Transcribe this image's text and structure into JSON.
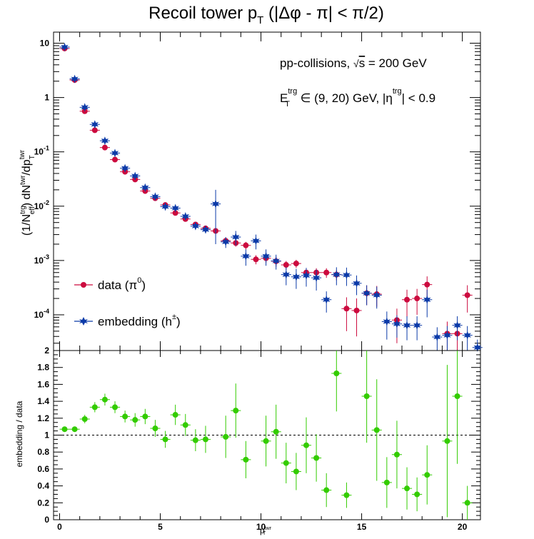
{
  "chart_data": [
    {
      "type": "scatter",
      "title_main": "Recoil tower p",
      "title_sub": "T",
      "title_tail": " (|Δφ - π| < π/2)",
      "annotation1": {
        "text": "pp-collisions, ",
        "sqrt": "s",
        "tail": " = 200 GeV"
      },
      "annotation2": {
        "base": "E",
        "sub": "T",
        "sup": "trg",
        "mid": " ∈ (9, 20) GeV, |η",
        "sup2": "trg",
        "tail": "| < 0.9"
      },
      "ylabel": {
        "a": "(1/N",
        "a_sup": "trg",
        "a_sub": "eff",
        "b": ") dN",
        "b_sup": "twr",
        "c": "/dp",
        "c_sub": "T",
        "c_sup": "twr"
      },
      "yscale": "log",
      "ylim": [
        2.2e-05,
        16
      ],
      "xlim": [
        -0.3,
        20.9
      ],
      "ytick_labels": [
        {
          "base": "10",
          "exp": "-4",
          "value": 0.0001
        },
        {
          "base": "10",
          "exp": "-3",
          "value": 0.001
        },
        {
          "base": "10",
          "exp": "-2",
          "value": 0.01
        },
        {
          "base": "10",
          "exp": "-1",
          "value": 0.1
        },
        {
          "base": "1",
          "exp": "",
          "value": 1
        },
        {
          "base": "10",
          "exp": "",
          "value": 10
        }
      ],
      "legend_position": "bottom-left",
      "series": [
        {
          "name": "data (π",
          "name_sup": "0",
          "name_tail": ")",
          "color": "#cc0a3e",
          "marker": "circle",
          "x": [
            0.25,
            0.75,
            1.25,
            1.75,
            2.25,
            2.75,
            3.25,
            3.75,
            4.25,
            4.75,
            5.25,
            5.75,
            6.25,
            6.75,
            7.25,
            7.75,
            8.25,
            8.75,
            9.25,
            9.75,
            10.25,
            10.75,
            11.25,
            11.75,
            12.25,
            12.75,
            13.25,
            13.75,
            14.25,
            14.75,
            15.25,
            15.75,
            16.25,
            16.75,
            17.25,
            17.75,
            18.25,
            18.75,
            19.25,
            19.75,
            20.25
          ],
          "y": [
            8.0,
            2.1,
            0.56,
            0.25,
            0.12,
            0.072,
            0.043,
            0.031,
            0.019,
            0.014,
            0.0105,
            0.0075,
            0.0058,
            0.0046,
            0.0039,
            0.0035,
            0.0023,
            0.0021,
            0.0019,
            0.00105,
            0.0011,
            0.00097,
            0.00083,
            0.00088,
            0.0006,
            0.0006,
            0.0006,
            0.00055,
            0.00013,
            0.00012,
            0.00025,
            0.00024,
            null,
            8e-05,
            0.00019,
            0.0002,
            0.00036,
            null,
            4.5e-05,
            4.5e-05,
            0.00023
          ],
          "err": [
            0.3,
            0.1,
            0.03,
            0.012,
            0.006,
            0.004,
            0.002,
            0.0015,
            0.001,
            0.0008,
            0.0006,
            0.0004,
            0.0004,
            0.0004,
            0.0004,
            0.0004,
            0.0003,
            0.0003,
            0.0003,
            0.0002,
            0.0002,
            0.0002,
            0.00015,
            0.00015,
            0.00012,
            0.00012,
            0.00012,
            0.00012,
            8e-05,
            8e-05,
            0.0001,
            0.0001,
            null,
            5e-05,
            0.0001,
            0.0001,
            0.00015,
            null,
            3e-05,
            3e-05,
            0.00012
          ]
        },
        {
          "name": "embedding (h",
          "name_sup": "±",
          "name_tail": ")",
          "color": "#0b3aa8",
          "marker": "star",
          "x": [
            0.25,
            0.75,
            1.25,
            1.75,
            2.25,
            2.75,
            3.25,
            3.75,
            4.25,
            4.75,
            5.25,
            5.75,
            6.25,
            6.75,
            7.25,
            7.75,
            8.25,
            8.75,
            9.25,
            9.75,
            10.25,
            10.75,
            11.25,
            11.75,
            12.25,
            12.75,
            13.25,
            13.75,
            14.25,
            14.75,
            15.25,
            15.75,
            16.25,
            16.75,
            17.25,
            17.75,
            18.25,
            18.75,
            19.25,
            19.75,
            20.25,
            20.75
          ],
          "y": [
            8.5,
            2.2,
            0.66,
            0.32,
            0.16,
            0.095,
            0.05,
            0.036,
            0.022,
            0.015,
            0.0098,
            0.0092,
            0.0065,
            0.0043,
            0.0037,
            0.011,
            0.0022,
            0.0027,
            0.0012,
            0.0023,
            0.0012,
            0.00098,
            0.00055,
            0.0005,
            0.00053,
            0.00048,
            0.00019,
            0.00055,
            0.00054,
            0.00038,
            0.00025,
            0.00023,
            7.5e-05,
            6.8e-05,
            6.4e-05,
            6.4e-05,
            0.00019,
            3.9e-05,
            4.2e-05,
            6.4e-05,
            4.2e-05,
            2.5e-05
          ],
          "err": [
            0.4,
            0.12,
            0.04,
            0.018,
            0.009,
            0.006,
            0.003,
            0.002,
            0.0015,
            0.001,
            0.0007,
            0.0007,
            0.0005,
            0.0004,
            0.0004,
            0.009,
            0.0005,
            0.0008,
            0.0004,
            0.0007,
            0.0004,
            0.0003,
            0.0002,
            0.0002,
            0.0002,
            0.0002,
            8e-05,
            0.0002,
            0.0002,
            0.00015,
            0.0001,
            0.0001,
            4e-05,
            3e-05,
            3e-05,
            3e-05,
            0.0001,
            2e-05,
            2e-05,
            3e-05,
            2e-05,
            1e-05
          ]
        }
      ]
    },
    {
      "type": "scatter",
      "ylabel": "embedding / data",
      "xlabel": "p",
      "xlabel_sub": "twr",
      "xlabel_sub2": "T",
      "ylim": [
        0,
        2
      ],
      "xlim": [
        -0.3,
        20.9
      ],
      "xtick_labels": [
        "0",
        "5",
        "10",
        "15",
        "20"
      ],
      "ytick_labels": [
        "0",
        "0.2",
        "0.4",
        "0.6",
        "0.8",
        "1",
        "1.2",
        "1.4",
        "1.6",
        "1.8",
        "2"
      ],
      "reference_line": 1,
      "series": [
        {
          "name": "",
          "color": "#33cc00",
          "marker": "circle",
          "x": [
            0.25,
            0.75,
            1.25,
            1.75,
            2.25,
            2.75,
            3.25,
            3.75,
            4.25,
            4.75,
            5.25,
            5.75,
            6.25,
            6.75,
            7.25,
            8.25,
            8.75,
            9.25,
            10.25,
            10.75,
            11.25,
            11.75,
            12.25,
            12.75,
            13.25,
            13.75,
            14.25,
            15.25,
            15.75,
            16.25,
            16.75,
            17.25,
            17.75,
            18.25,
            19.25,
            19.75,
            20.25
          ],
          "y": [
            1.07,
            1.07,
            1.19,
            1.33,
            1.42,
            1.33,
            1.22,
            1.18,
            1.22,
            1.08,
            0.95,
            1.24,
            1.12,
            0.94,
            0.95,
            0.98,
            1.29,
            0.71,
            0.93,
            1.04,
            0.67,
            0.57,
            0.88,
            0.73,
            0.35,
            1.73,
            0.29,
            1.46,
            1.06,
            0.44,
            0.77,
            0.37,
            0.3,
            0.53,
            0.93,
            1.46,
            0.2
          ],
          "err": [
            0.03,
            0.03,
            0.05,
            0.06,
            0.07,
            0.07,
            0.07,
            0.08,
            0.09,
            0.1,
            0.1,
            0.12,
            0.13,
            0.13,
            0.16,
            0.25,
            0.32,
            0.22,
            0.3,
            0.32,
            0.24,
            0.22,
            0.33,
            0.28,
            0.2,
            0.45,
            0.15,
            0.55,
            0.6,
            0.3,
            0.4,
            0.25,
            0.2,
            0.35,
            0.9,
            0.8,
            0.2
          ]
        }
      ]
    }
  ]
}
